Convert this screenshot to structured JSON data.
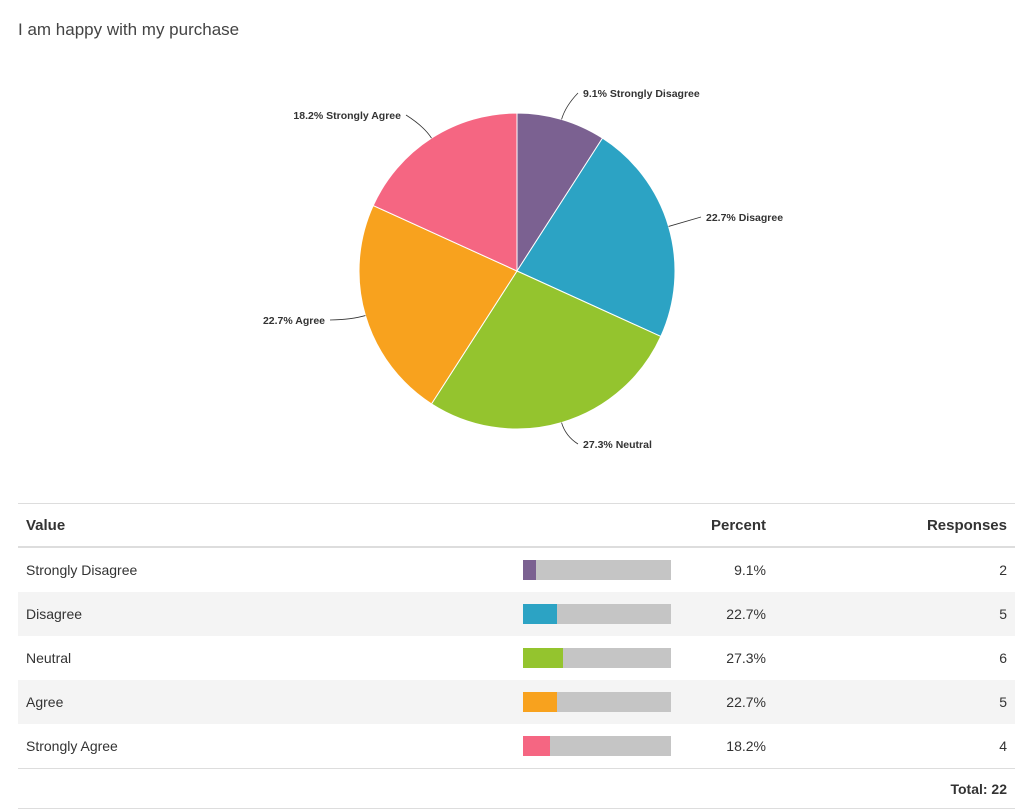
{
  "chart_data": {
    "type": "pie",
    "title": "I am happy with my purchase",
    "slices": [
      {
        "label": "Strongly Disagree",
        "percent": 9.1,
        "responses": 2,
        "color": "#7b6191",
        "data_label": "9.1% Strongly Disagree"
      },
      {
        "label": "Disagree",
        "percent": 22.7,
        "responses": 5,
        "color": "#2ca3c4",
        "data_label": "22.7% Disagree"
      },
      {
        "label": "Neutral",
        "percent": 27.3,
        "responses": 6,
        "color": "#94c42e",
        "data_label": "27.3% Neutral"
      },
      {
        "label": "Agree",
        "percent": 22.7,
        "responses": 5,
        "color": "#f8a21e",
        "data_label": "22.7% Agree"
      },
      {
        "label": "Strongly Agree",
        "percent": 18.2,
        "responses": 4,
        "color": "#f56682",
        "data_label": "18.2% Strongly Agree"
      }
    ]
  },
  "table": {
    "headers": {
      "value": "Value",
      "percent": "Percent",
      "responses": "Responses"
    },
    "rows": [
      {
        "value": "Strongly Disagree",
        "percent": "9.1%",
        "responses": "2"
      },
      {
        "value": "Disagree",
        "percent": "22.7%",
        "responses": "5"
      },
      {
        "value": "Neutral",
        "percent": "27.3%",
        "responses": "6"
      },
      {
        "value": "Agree",
        "percent": "22.7%",
        "responses": "5"
      },
      {
        "value": "Strongly Agree",
        "percent": "18.2%",
        "responses": "4"
      }
    ],
    "total": "Total: 22"
  }
}
